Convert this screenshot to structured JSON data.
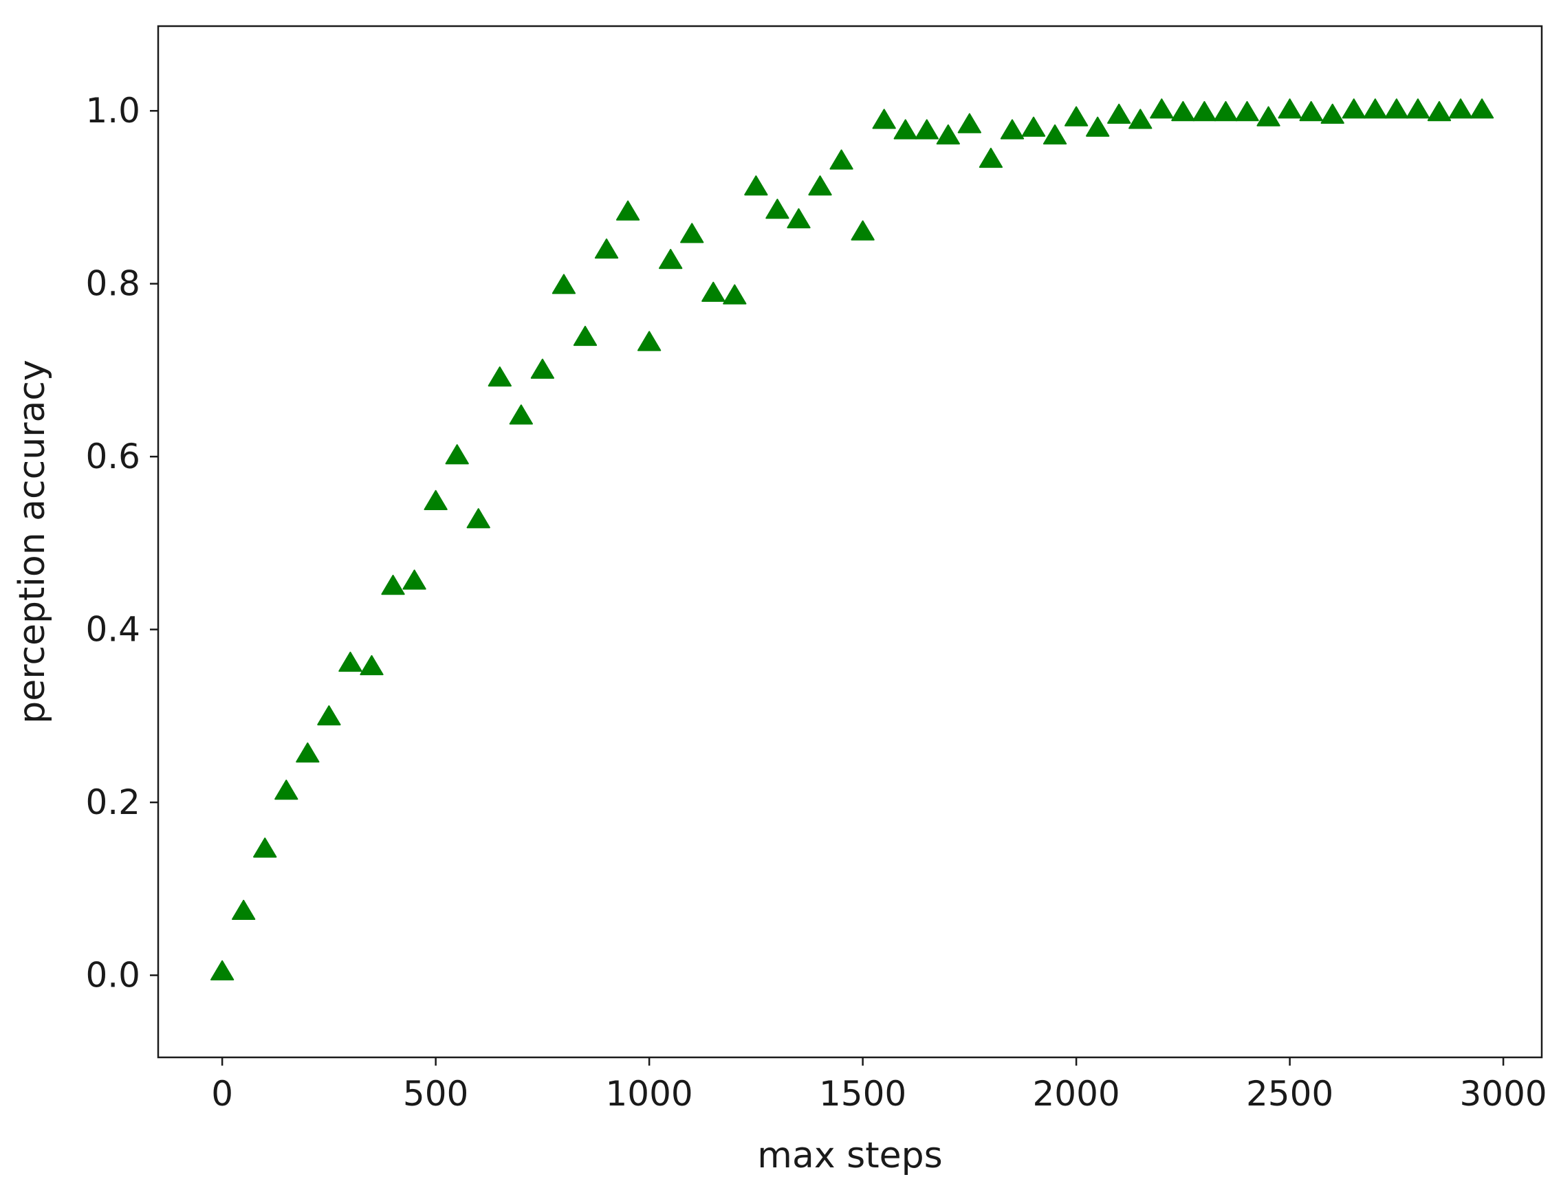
{
  "chart_data": {
    "type": "scatter",
    "title": "",
    "xlabel": "max steps",
    "ylabel": "perception accuracy",
    "xlim": [
      -150,
      3090
    ],
    "ylim": [
      -0.095,
      1.098
    ],
    "xticks": [
      0,
      500,
      1000,
      1500,
      2000,
      2500,
      3000
    ],
    "xtick_labels": [
      "0",
      "500",
      "1000",
      "1500",
      "2000",
      "2500",
      "3000"
    ],
    "yticks": [
      0.0,
      0.2,
      0.4,
      0.6,
      0.8,
      1.0
    ],
    "ytick_labels": [
      "0.0",
      "0.2",
      "0.4",
      "0.6",
      "0.8",
      "1.0"
    ],
    "grid": false,
    "marker": "triangle-up",
    "marker_color": "#008000",
    "series": [
      {
        "x": [
          0,
          50,
          100,
          150,
          200,
          250,
          300,
          350,
          400,
          450,
          500,
          550,
          600,
          650,
          700,
          750,
          800,
          850,
          900,
          950,
          1000,
          1050,
          1100,
          1150,
          1200,
          1250,
          1300,
          1350,
          1400,
          1450,
          1500,
          1550,
          1600,
          1650,
          1700,
          1750,
          1800,
          1850,
          1900,
          1950,
          2000,
          2050,
          2100,
          2150,
          2200,
          2250,
          2300,
          2350,
          2400,
          2450,
          2500,
          2550,
          2600,
          2650,
          2700,
          2750,
          2800,
          2850,
          2900,
          2950
        ],
        "y": [
          0.003,
          0.073,
          0.145,
          0.212,
          0.255,
          0.298,
          0.36,
          0.356,
          0.449,
          0.455,
          0.547,
          0.6,
          0.526,
          0.69,
          0.646,
          0.699,
          0.797,
          0.737,
          0.838,
          0.882,
          0.731,
          0.826,
          0.856,
          0.788,
          0.785,
          0.911,
          0.884,
          0.873,
          0.911,
          0.941,
          0.859,
          0.988,
          0.976,
          0.976,
          0.97,
          0.983,
          0.943,
          0.976,
          0.979,
          0.97,
          0.991,
          0.979,
          0.994,
          0.988,
          1.0,
          0.997,
          0.997,
          0.997,
          0.997,
          0.991,
          1.0,
          0.997,
          0.994,
          1.0,
          1.0,
          1.0,
          1.0,
          0.997,
          1.0,
          1.0
        ]
      }
    ]
  }
}
